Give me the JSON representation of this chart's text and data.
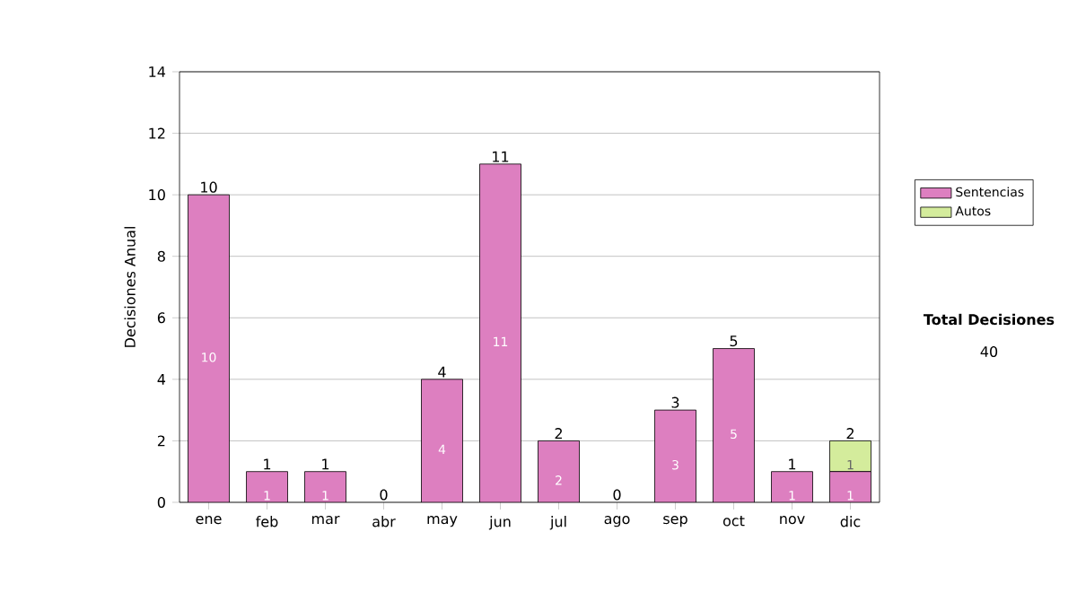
{
  "chart_data": {
    "type": "bar",
    "stacked": true,
    "ylabel": "Decisiones Anual",
    "categories": [
      "ene",
      "feb",
      "mar",
      "abr",
      "may",
      "jun",
      "jul",
      "ago",
      "sep",
      "oct",
      "nov",
      "dic"
    ],
    "series": [
      {
        "name": "Sentencias",
        "color": "#dd7fc0",
        "values": [
          10,
          1,
          1,
          0,
          4,
          11,
          2,
          0,
          3,
          5,
          1,
          1
        ],
        "value_labels": [
          "10",
          "1",
          "1",
          null,
          "4",
          "11",
          "2",
          null,
          "3",
          "5",
          "1",
          "1"
        ]
      },
      {
        "name": "Autos",
        "color": "#d4ec9c",
        "values": [
          0,
          0,
          0,
          0,
          0,
          0,
          0,
          0,
          0,
          0,
          0,
          1
        ],
        "value_labels": [
          null,
          null,
          null,
          null,
          null,
          null,
          null,
          null,
          null,
          null,
          null,
          "1"
        ]
      }
    ],
    "totals": [
      "10",
      "1",
      "1",
      "0",
      "4",
      "11",
      "2",
      "0",
      "3",
      "5",
      "1",
      "2"
    ],
    "ylim": [
      0,
      14
    ],
    "yticks": [
      0,
      2,
      4,
      6,
      8,
      10,
      12,
      14
    ],
    "grid": "y",
    "legend": "right",
    "annotations": [
      "Total Decisiones",
      "40"
    ]
  }
}
